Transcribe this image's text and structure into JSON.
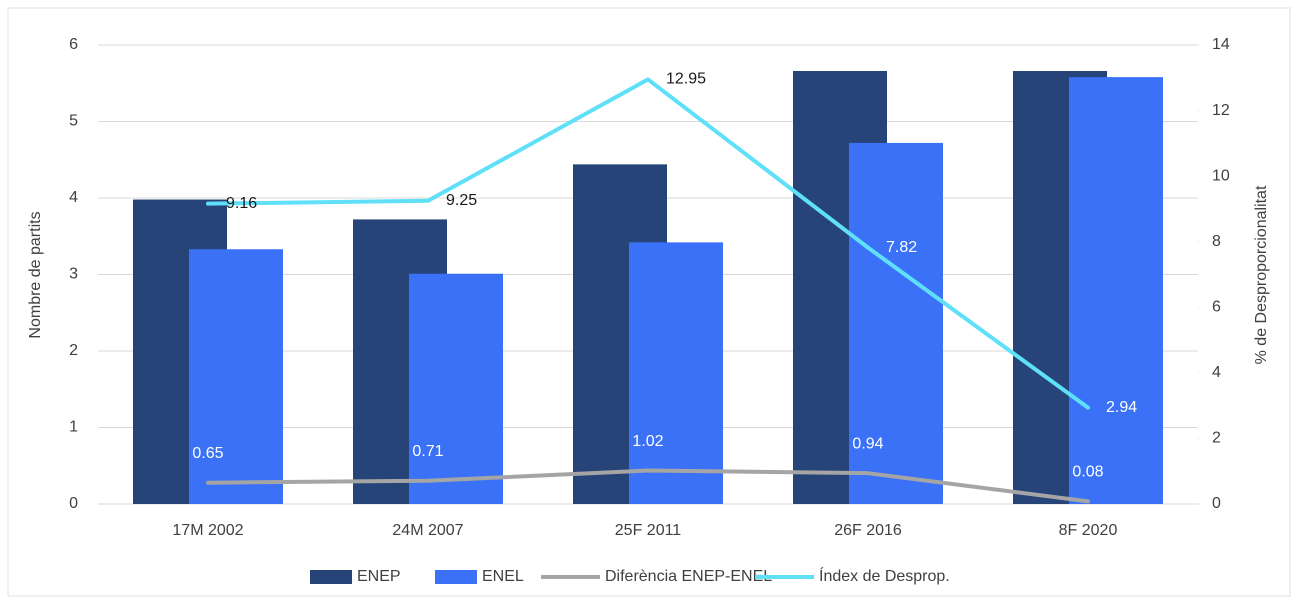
{
  "chart_data": {
    "type": "bar",
    "categories": [
      "17M 2002",
      "24M 2007",
      "25F 2011",
      "26F 2016",
      "8F 2020"
    ],
    "series": [
      {
        "name": "ENEP",
        "type": "bar",
        "color": "#264478",
        "values": [
          3.98,
          3.72,
          4.44,
          5.66,
          5.66
        ]
      },
      {
        "name": "ENEL",
        "type": "bar",
        "color": "#3a71f7",
        "values": [
          3.33,
          3.01,
          3.42,
          4.72,
          5.58
        ]
      },
      {
        "name": "Diferència ENEP-ENEL",
        "type": "line",
        "axis": "y2",
        "color": "#a5a5a5",
        "values": [
          0.65,
          0.71,
          1.02,
          0.94,
          0.08
        ]
      },
      {
        "name": "Índex de Desprop.",
        "type": "line",
        "axis": "y2",
        "color": "#5fe0f8",
        "values": [
          9.16,
          9.25,
          12.95,
          7.82,
          2.94
        ]
      }
    ],
    "ylabel": "Nombre de partits",
    "y2label": "% de Desproporcionalitat",
    "ylim": [
      0,
      6
    ],
    "yticks": [
      0,
      1,
      2,
      3,
      4,
      5,
      6
    ],
    "y2lim": [
      0,
      14
    ],
    "y2ticks": [
      0,
      2,
      4,
      6,
      8,
      10,
      12,
      14
    ],
    "grid": true,
    "legend": "bottom"
  }
}
